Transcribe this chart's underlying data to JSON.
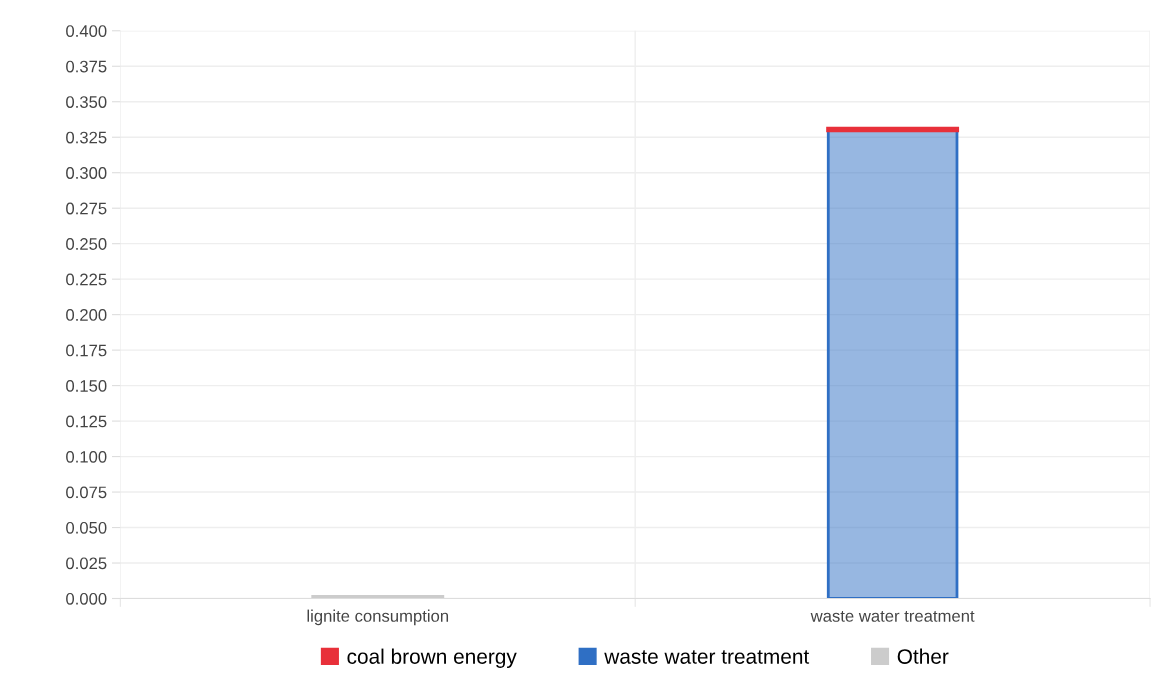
{
  "chart_data": {
    "type": "bar",
    "stacked": true,
    "categories": [
      "lignite consumption",
      "waste water treatment"
    ],
    "series": [
      {
        "name": "Other",
        "color": "#cccccc",
        "values": [
          0.001,
          0
        ]
      },
      {
        "name": "waste water treatment",
        "color": "#2f6fc4",
        "values": [
          0,
          0.33
        ]
      },
      {
        "name": "coal brown energy",
        "color": "#e8303a",
        "values": [
          0,
          0.001
        ]
      }
    ],
    "ylim": [
      0,
      0.4
    ],
    "yticks": [
      {
        "value": 0,
        "label": "0.000"
      },
      {
        "value": 0.025,
        "label": "0.025"
      },
      {
        "value": 0.05,
        "label": "0.050"
      },
      {
        "value": 0.075,
        "label": "0.075"
      },
      {
        "value": 0.1,
        "label": "0.100"
      },
      {
        "value": 0.125,
        "label": "0.125"
      },
      {
        "value": 0.15,
        "label": "0.150"
      },
      {
        "value": 0.175,
        "label": "0.175"
      },
      {
        "value": 0.2,
        "label": "0.200"
      },
      {
        "value": 0.225,
        "label": "0.225"
      },
      {
        "value": 0.25,
        "label": "0.250"
      },
      {
        "value": 0.275,
        "label": "0.275"
      },
      {
        "value": 0.3,
        "label": "0.300"
      },
      {
        "value": 0.325,
        "label": "0.325"
      },
      {
        "value": 0.35,
        "label": "0.350"
      },
      {
        "value": 0.375,
        "label": "0.375"
      },
      {
        "value": 0.4,
        "label": "0.400"
      }
    ],
    "grid": true,
    "legend": "bottom"
  }
}
